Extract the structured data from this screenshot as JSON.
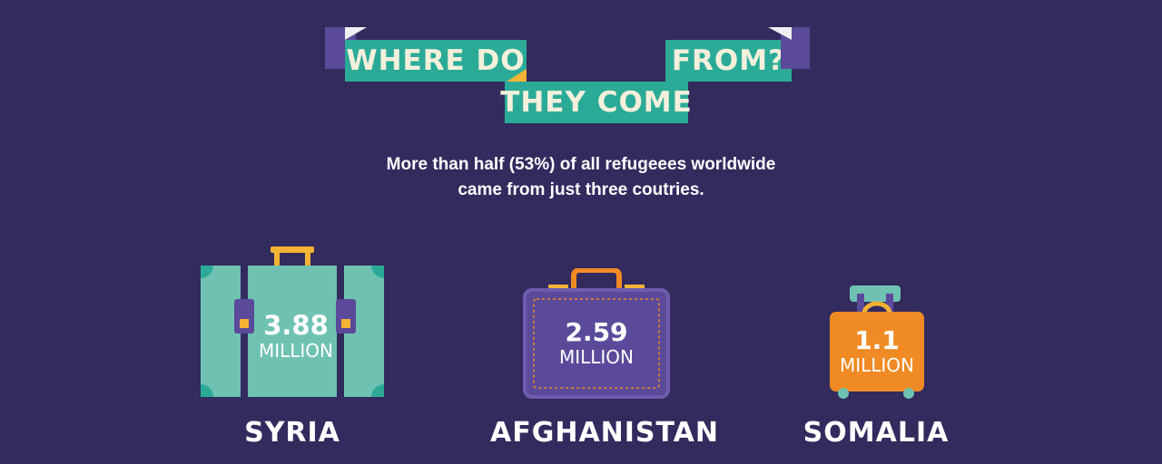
{
  "title": {
    "line1": "WHERE DO",
    "line2": "THEY COME",
    "line3": "FROM?"
  },
  "subtitle": {
    "line1": "More than half (53%) of all refugeees worldwide",
    "line2": "came from just three coutries."
  },
  "countries": [
    {
      "name": "SYRIA",
      "value": "3.88",
      "unit": "MILLION",
      "suitcase_color": "#6fc2b1"
    },
    {
      "name": "AFGHANISTAN",
      "value": "2.59",
      "unit": "MILLION",
      "suitcase_color": "#5b4a9a"
    },
    {
      "name": "SOMALIA",
      "value": "1.1",
      "unit": "MILLION",
      "suitcase_color": "#f08a24"
    }
  ],
  "colors": {
    "background": "#332a5e",
    "ribbon": "#2bab97",
    "ribbon_shadow": "#5b4a9a",
    "accent_yellow": "#f5b335"
  }
}
